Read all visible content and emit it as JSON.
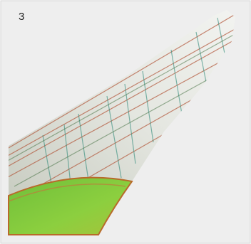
{
  "label": "3"
}
